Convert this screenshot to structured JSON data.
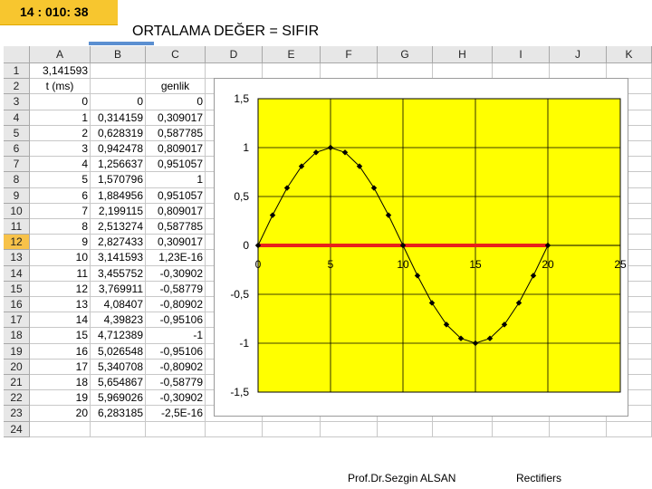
{
  "slide": {
    "badge": "14 : 010: 38",
    "title": "ORTALAMA DEĞER  =  SIFIR",
    "footer_author": "Prof.Dr.Sezgin ALSAN",
    "footer_topic": "Rectifiers"
  },
  "sheet": {
    "columns": [
      "A",
      "B",
      "C",
      "D",
      "E",
      "F",
      "G",
      "H",
      "I",
      "J",
      "K"
    ],
    "row_numbers": [
      "1",
      "2",
      "3",
      "4",
      "5",
      "6",
      "7",
      "8",
      "9",
      "10",
      "11",
      "12",
      "13",
      "14",
      "15",
      "16",
      "17",
      "18",
      "19",
      "20",
      "21",
      "22",
      "23",
      "24"
    ],
    "selected_row": "12",
    "cell_a1": "3,141593",
    "header_a2": "t (ms)",
    "header_c2": "genlik",
    "col_a": [
      "0",
      "1",
      "2",
      "3",
      "4",
      "5",
      "6",
      "7",
      "8",
      "9",
      "10",
      "11",
      "12",
      "13",
      "14",
      "15",
      "16",
      "17",
      "18",
      "19",
      "20"
    ],
    "col_b": [
      "0",
      "0,314159",
      "0,628319",
      "0,942478",
      "1,256637",
      "1,570796",
      "1,884956",
      "2,199115",
      "2,513274",
      "2,827433",
      "3,141593",
      "3,455752",
      "3,769911",
      "4,08407",
      "4,39823",
      "4,712389",
      "5,026548",
      "5,340708",
      "5,654867",
      "5,969026",
      "6,283185"
    ],
    "col_c": [
      "0",
      "0,309017",
      "0,587785",
      "0,809017",
      "0,951057",
      "1",
      "0,951057",
      "0,809017",
      "0,587785",
      "0,309017",
      "1,23E-16",
      "-0,30902",
      "-0,58779",
      "-0,80902",
      "-0,95106",
      "-1",
      "-0,95106",
      "-0,80902",
      "-0,58779",
      "-0,30902",
      "-2,5E-16"
    ]
  },
  "chart_data": {
    "type": "scatter",
    "x": [
      0,
      1,
      2,
      3,
      4,
      5,
      6,
      7,
      8,
      9,
      10,
      11,
      12,
      13,
      14,
      15,
      16,
      17,
      18,
      19,
      20
    ],
    "series": [
      {
        "values": [
          0,
          0.309017,
          0.587785,
          0.809017,
          0.951057,
          1,
          0.951057,
          0.809017,
          0.587785,
          0.309017,
          0,
          -0.30902,
          -0.58779,
          -0.80902,
          -0.95106,
          -1,
          -0.95106,
          -0.80902,
          -0.58779,
          -0.30902,
          0
        ],
        "color": "#000000"
      },
      {
        "values": [
          0,
          0,
          0,
          0,
          0,
          0,
          0,
          0,
          0,
          0,
          0,
          0,
          0,
          0,
          0,
          0,
          0,
          0,
          0,
          0,
          0
        ],
        "color": "#e8211b"
      }
    ],
    "xlim": [
      0,
      25
    ],
    "ylim": [
      -1.5,
      1.5
    ],
    "x_ticks": [
      "0",
      "5",
      "10",
      "15",
      "20",
      "25"
    ],
    "y_ticks": [
      "1,5",
      "1",
      "0,5",
      "0",
      "-0,5",
      "-1",
      "-1,5"
    ],
    "grid": true,
    "plot_background": "#ffff00"
  }
}
